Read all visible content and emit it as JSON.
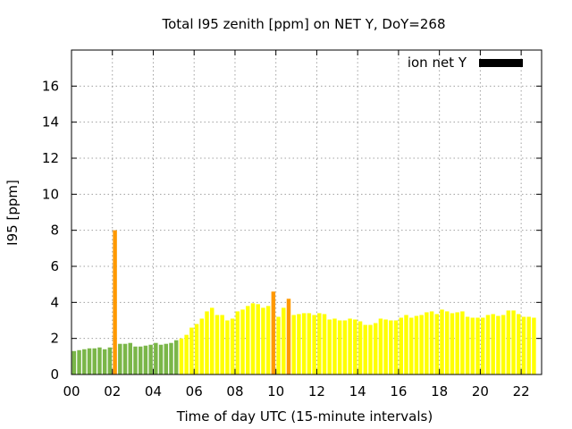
{
  "chart_data": {
    "type": "bar",
    "title": "Total I95 zenith [ppm] on NET Y, DoY=268",
    "xlabel": "Time of day UTC (15-minute intervals)",
    "ylabel": "I95 [ppm]",
    "xlim": [
      0,
      23
    ],
    "ylim": [
      0,
      18
    ],
    "x_ticks": [
      "00",
      "02",
      "04",
      "06",
      "08",
      "10",
      "12",
      "14",
      "16",
      "18",
      "20",
      "22"
    ],
    "y_ticks": [
      "0",
      "2",
      "4",
      "6",
      "8",
      "10",
      "12",
      "14",
      "16"
    ],
    "grid": true,
    "legend": {
      "position": "top-right",
      "label": "ion net Y",
      "color": "#000000"
    },
    "color_scale": {
      "low": "#7ab648",
      "medium": "#ffff00",
      "high": "#ff9900"
    },
    "series": [
      {
        "name": "ion net Y",
        "start_hour": 0,
        "step_hours": 0.25,
        "values": [
          1.3,
          1.35,
          1.4,
          1.45,
          1.45,
          1.5,
          1.4,
          1.5,
          8.0,
          1.7,
          1.7,
          1.75,
          1.55,
          1.55,
          1.6,
          1.65,
          1.75,
          1.65,
          1.7,
          1.75,
          1.9,
          2.0,
          2.2,
          2.6,
          2.8,
          3.1,
          3.5,
          3.7,
          3.3,
          3.3,
          3.0,
          3.1,
          3.5,
          3.6,
          3.8,
          3.95,
          3.9,
          3.7,
          3.8,
          4.6,
          3.2,
          3.7,
          4.2,
          3.3,
          3.35,
          3.4,
          3.4,
          3.3,
          3.4,
          3.35,
          3.05,
          3.1,
          3.0,
          3.0,
          3.1,
          3.05,
          2.95,
          2.75,
          2.75,
          2.85,
          3.1,
          3.05,
          3.0,
          3.0,
          3.15,
          3.3,
          3.15,
          3.25,
          3.3,
          3.45,
          3.5,
          3.35,
          3.6,
          3.5,
          3.4,
          3.45,
          3.5,
          3.2,
          3.15,
          3.15,
          3.15,
          3.3,
          3.35,
          3.25,
          3.3,
          3.55,
          3.55,
          3.35,
          3.2,
          3.2,
          3.15
        ]
      }
    ]
  }
}
